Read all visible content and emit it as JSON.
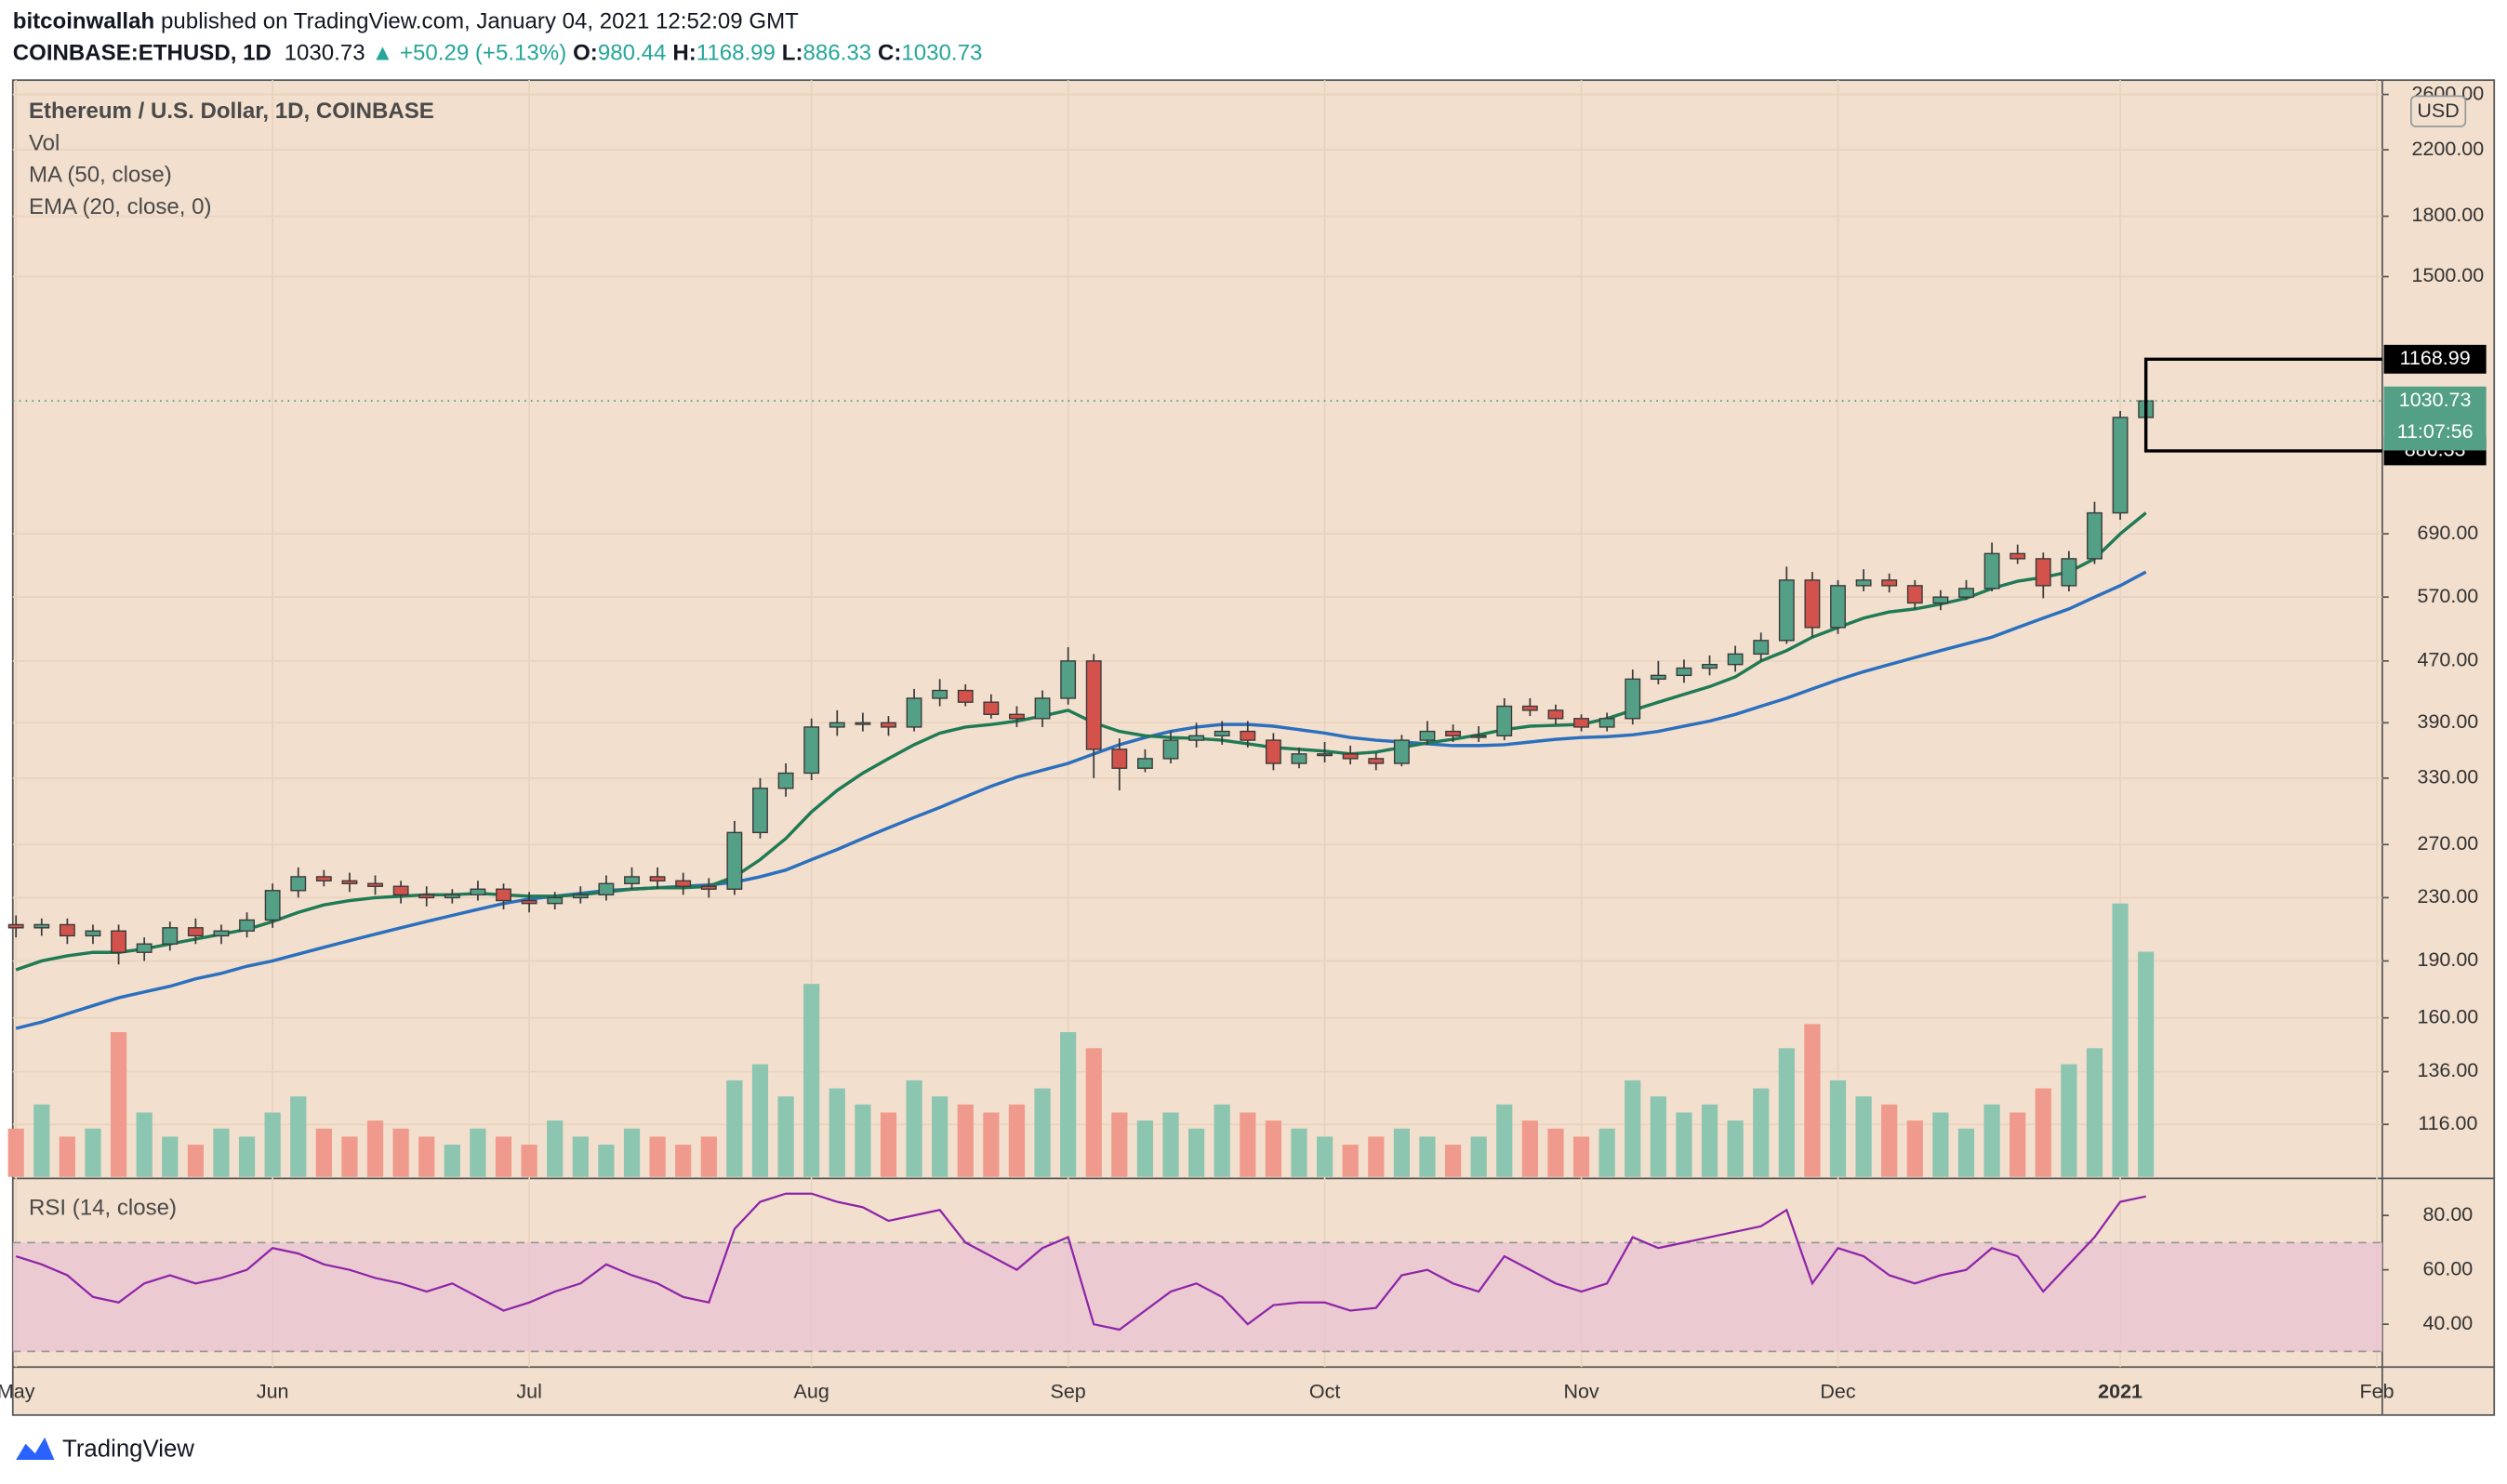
{
  "header": {
    "author": "bitcoinwallah",
    "published": "published on TradingView.com, January 04, 2021 12:52:09 GMT",
    "symbol": "COINBASE:ETHUSD, 1D",
    "change": "▲ +50.29 (+5.13%)",
    "ohlc_labels": [
      "O:",
      "H:",
      "L:",
      "C:"
    ]
  },
  "legend": {
    "title": "Ethereum / U.S. Dollar, 1D, COINBASE",
    "volume": "Vol"
  },
  "currency": "USD",
  "countdown": "11:07:56",
  "footer": "TradingView",
  "chart_data": {
    "type": "candlestick",
    "categories": [
      "May",
      null,
      null,
      null,
      null,
      null,
      null,
      null,
      null,
      null,
      "Jun",
      null,
      null,
      null,
      null,
      null,
      null,
      null,
      null,
      null,
      "Jul",
      null,
      null,
      null,
      null,
      null,
      null,
      null,
      null,
      null,
      null,
      "Aug",
      null,
      null,
      null,
      null,
      null,
      null,
      null,
      null,
      null,
      "Sep",
      null,
      null,
      null,
      null,
      null,
      null,
      null,
      null,
      null,
      "Oct",
      null,
      null,
      null,
      null,
      null,
      null,
      null,
      null,
      null,
      "Nov",
      null,
      null,
      null,
      null,
      null,
      null,
      null,
      null,
      null,
      "Dec",
      null,
      null,
      null,
      null,
      null,
      null,
      null,
      null,
      null,
      null,
      "2021",
      null,
      null,
      null,
      null,
      null,
      null,
      null,
      null,
      null,
      "Feb"
    ],
    "open": [
      212,
      210,
      212,
      205,
      208,
      195,
      200,
      210,
      205,
      208,
      215,
      235,
      245,
      242,
      240,
      238,
      232,
      230,
      232,
      236,
      228,
      226,
      230,
      232,
      240,
      245,
      242,
      238,
      236,
      280,
      320,
      335,
      385,
      390,
      390,
      385,
      420,
      430,
      415,
      400,
      395,
      420,
      470,
      360,
      340,
      350,
      370,
      375,
      380,
      370,
      345,
      355,
      355,
      350,
      345,
      370,
      380,
      375,
      375,
      410,
      405,
      395,
      385,
      395,
      445,
      450,
      460,
      465,
      480,
      500,
      600,
      520,
      590,
      600,
      590,
      560,
      570,
      585,
      650,
      640,
      590,
      640,
      735,
      980.44,
      null,
      null,
      null,
      null,
      null,
      null,
      null,
      null,
      null
    ],
    "high": [
      218,
      216,
      216,
      212,
      212,
      204,
      214,
      216,
      212,
      220,
      240,
      252,
      250,
      248,
      246,
      242,
      238,
      236,
      242,
      240,
      234,
      234,
      238,
      246,
      252,
      252,
      248,
      244,
      290,
      330,
      345,
      395,
      405,
      402,
      398,
      432,
      445,
      438,
      425,
      410,
      430,
      490,
      480,
      372,
      360,
      380,
      390,
      392,
      392,
      378,
      362,
      368,
      364,
      356,
      376,
      392,
      388,
      386,
      420,
      420,
      412,
      400,
      402,
      458,
      470,
      472,
      478,
      492,
      512,
      625,
      615,
      600,
      620,
      612,
      600,
      582,
      600,
      672,
      668,
      652,
      655,
      760,
      1000,
      1168.99,
      null,
      null,
      null,
      null,
      null,
      null,
      null,
      null,
      null
    ],
    "low": [
      204,
      205,
      200,
      200,
      188,
      190,
      196,
      200,
      200,
      204,
      210,
      230,
      238,
      234,
      232,
      226,
      224,
      226,
      228,
      222,
      220,
      222,
      226,
      228,
      236,
      236,
      232,
      230,
      232,
      275,
      312,
      328,
      375,
      380,
      375,
      380,
      410,
      410,
      395,
      385,
      385,
      412,
      330,
      318,
      336,
      345,
      362,
      365,
      362,
      338,
      340,
      346,
      344,
      338,
      342,
      365,
      368,
      368,
      370,
      398,
      388,
      380,
      380,
      388,
      438,
      440,
      450,
      455,
      470,
      495,
      505,
      510,
      580,
      578,
      550,
      548,
      565,
      580,
      630,
      568,
      580,
      630,
      720,
      886.33,
      null,
      null,
      null,
      null,
      null,
      null,
      null,
      null,
      null
    ],
    "close": [
      210,
      212,
      205,
      208,
      195,
      200,
      210,
      205,
      208,
      215,
      235,
      245,
      242,
      240,
      238,
      232,
      230,
      232,
      236,
      228,
      226,
      230,
      232,
      240,
      245,
      242,
      238,
      236,
      280,
      320,
      335,
      385,
      390,
      390,
      385,
      420,
      430,
      415,
      400,
      395,
      420,
      470,
      360,
      340,
      350,
      370,
      375,
      380,
      370,
      345,
      355,
      355,
      350,
      345,
      370,
      380,
      375,
      375,
      410,
      405,
      395,
      385,
      395,
      445,
      450,
      460,
      465,
      480,
      500,
      600,
      520,
      590,
      600,
      590,
      560,
      570,
      585,
      650,
      640,
      590,
      640,
      735,
      980.44,
      1030.73,
      null,
      null,
      null,
      null,
      null,
      null,
      null,
      null,
      null
    ],
    "volume": [
      30,
      45,
      25,
      30,
      90,
      40,
      25,
      20,
      30,
      25,
      40,
      50,
      30,
      25,
      35,
      30,
      25,
      20,
      30,
      25,
      20,
      35,
      25,
      20,
      30,
      25,
      20,
      25,
      60,
      70,
      50,
      120,
      55,
      45,
      40,
      60,
      50,
      45,
      40,
      45,
      55,
      90,
      80,
      40,
      35,
      40,
      30,
      45,
      40,
      35,
      30,
      25,
      20,
      25,
      30,
      25,
      20,
      25,
      45,
      35,
      30,
      25,
      30,
      60,
      50,
      40,
      45,
      35,
      55,
      80,
      95,
      60,
      50,
      45,
      35,
      40,
      30,
      45,
      40,
      55,
      70,
      80,
      170,
      140,
      null,
      null,
      null,
      null,
      null,
      null,
      null,
      null,
      null
    ],
    "up_color": "#53a086",
    "down_color": "#d3524b",
    "volume_up_color": "#8cc5b0",
    "volume_down_color": "#ef9a8c",
    "series": [
      {
        "name": "MA (50, close)",
        "color": "#2b6fbf",
        "values": [
          155,
          158,
          162,
          166,
          170,
          173,
          176,
          180,
          183,
          187,
          190,
          194,
          198,
          202,
          206,
          210,
          214,
          218,
          222,
          226,
          229,
          231,
          233,
          235,
          236,
          237,
          238,
          239,
          241,
          245,
          250,
          258,
          266,
          275,
          284,
          293,
          302,
          312,
          322,
          331,
          338,
          345,
          355,
          365,
          373,
          380,
          385,
          388,
          388,
          386,
          382,
          378,
          373,
          370,
          368,
          366,
          364,
          364,
          365,
          368,
          371,
          373,
          374,
          376,
          380,
          386,
          392,
          400,
          410,
          420,
          432,
          444,
          455,
          465,
          475,
          485,
          495,
          505,
          520,
          535,
          550,
          570,
          590,
          615,
          null,
          null,
          null,
          null,
          null,
          null,
          null,
          null,
          null
        ]
      },
      {
        "name": "EMA (20, close, 0)",
        "color": "#1f7a55",
        "values": [
          185,
          190,
          193,
          195,
          195,
          197,
          200,
          203,
          206,
          209,
          214,
          220,
          225,
          228,
          230,
          231,
          232,
          232,
          233,
          232,
          231,
          231,
          232,
          234,
          236,
          237,
          237,
          238,
          245,
          258,
          275,
          298,
          318,
          335,
          350,
          365,
          378,
          385,
          388,
          392,
          398,
          405,
          390,
          380,
          375,
          373,
          372,
          370,
          366,
          362,
          360,
          358,
          355,
          357,
          362,
          367,
          371,
          376,
          382,
          386,
          387,
          388,
          395,
          405,
          415,
          425,
          435,
          448,
          470,
          485,
          505,
          520,
          535,
          545,
          550,
          558,
          568,
          585,
          598,
          605,
          615,
          640,
          690,
          735,
          null,
          null,
          null,
          null,
          null,
          null,
          null,
          null,
          null
        ]
      }
    ],
    "log_scale": true,
    "ylim": [
      99,
      2715
    ],
    "yticks": [
      {
        "value": 116,
        "label": "116.00"
      },
      {
        "value": 136,
        "label": "136.00"
      },
      {
        "value": 160,
        "label": "160.00"
      },
      {
        "value": 190,
        "label": "190.00"
      },
      {
        "value": 230,
        "label": "230.00"
      },
      {
        "value": 270,
        "label": "270.00"
      },
      {
        "value": 330,
        "label": "330.00"
      },
      {
        "value": 390,
        "label": "390.00"
      },
      {
        "value": 470,
        "label": "470.00"
      },
      {
        "value": 570,
        "label": "570.00"
      },
      {
        "value": 690,
        "label": "690.00"
      },
      {
        "value": 1500,
        "label": "1500.00"
      },
      {
        "value": 1800,
        "label": "1800.00"
      },
      {
        "value": 2200,
        "label": "2200.00"
      },
      {
        "value": 2600,
        "label": "2600.00"
      }
    ],
    "grid": true,
    "rsi": {
      "name": "RSI (14, close)",
      "color": "#8e24aa",
      "band_color": "#e8c4d2",
      "band": [
        30,
        70
      ],
      "values": [
        65,
        62,
        58,
        50,
        48,
        55,
        58,
        55,
        57,
        60,
        68,
        66,
        62,
        60,
        57,
        55,
        52,
        55,
        50,
        45,
        48,
        52,
        55,
        62,
        58,
        55,
        50,
        48,
        75,
        85,
        88,
        88,
        85,
        83,
        78,
        80,
        82,
        70,
        65,
        60,
        68,
        72,
        40,
        38,
        45,
        52,
        55,
        50,
        40,
        47,
        48,
        48,
        45,
        46,
        58,
        60,
        55,
        52,
        65,
        60,
        55,
        52,
        55,
        72,
        68,
        70,
        72,
        74,
        76,
        82,
        55,
        68,
        65,
        58,
        55,
        58,
        60,
        68,
        65,
        52,
        62,
        72,
        85,
        87,
        null,
        null,
        null,
        null,
        null,
        null,
        null,
        null,
        null
      ],
      "ylim": [
        26,
        93
      ],
      "yticks": [
        {
          "value": 40,
          "label": "40.00"
        },
        {
          "value": 60,
          "label": "60.00"
        },
        {
          "value": 80,
          "label": "80.00"
        }
      ]
    }
  }
}
